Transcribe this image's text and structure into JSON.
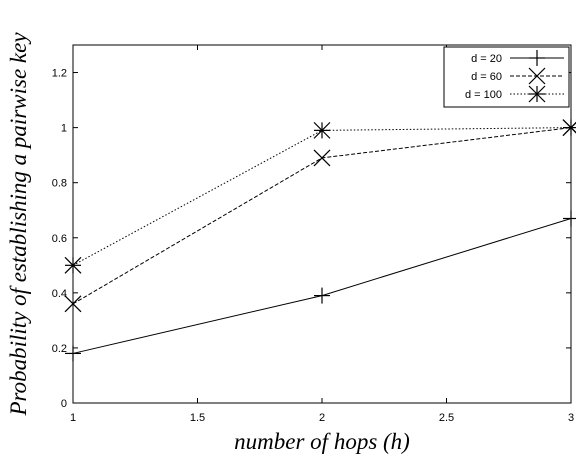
{
  "chart_data": {
    "type": "line",
    "title": "",
    "xlabel": "number of hops (h)",
    "ylabel": "Probability of establishing a pairwise key",
    "x": [
      1,
      2,
      3
    ],
    "xlim": [
      1,
      3
    ],
    "ylim": [
      0,
      1.3
    ],
    "xticks": [
      "1",
      "1.5",
      "2",
      "2.5",
      "3"
    ],
    "yticks": [
      "0",
      "0.2",
      "0.4",
      "0.6",
      "0.8",
      "1",
      "1.2"
    ],
    "legend_position": "top-right",
    "grid": false,
    "series": [
      {
        "name": "d = 20",
        "values": [
          0.18,
          0.39,
          0.67
        ],
        "marker": "plus",
        "dash": "solid"
      },
      {
        "name": "d = 60",
        "values": [
          0.36,
          0.89,
          1.0
        ],
        "marker": "x",
        "dash": "dashed"
      },
      {
        "name": "d = 100",
        "values": [
          0.5,
          0.99,
          1.0
        ],
        "marker": "star",
        "dash": "dotted"
      }
    ]
  }
}
